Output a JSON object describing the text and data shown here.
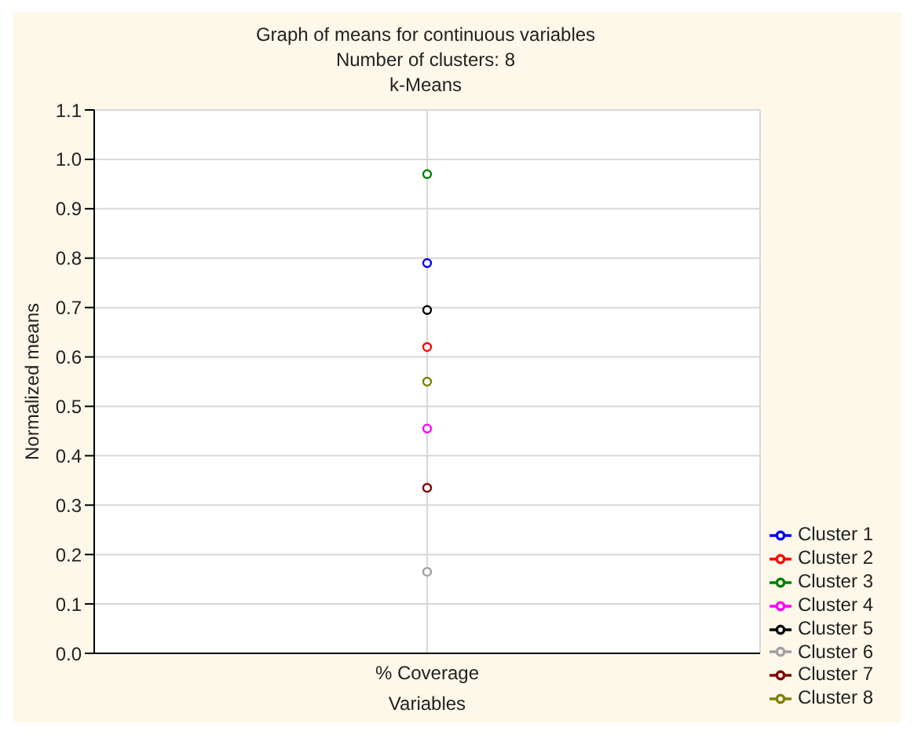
{
  "chart_data": {
    "type": "line",
    "title": "Graph of means for continuous variables",
    "subtitle": "Number of clusters: 8\nk-Means",
    "xlabel": "Variables",
    "ylabel": "Normalized means",
    "categories": [
      "% Coverage"
    ],
    "series": [
      {
        "name": "Cluster 1",
        "color": "#0000ff",
        "values": [
          0.79
        ]
      },
      {
        "name": "Cluster 2",
        "color": "#ff0000",
        "values": [
          0.62
        ]
      },
      {
        "name": "Cluster 3",
        "color": "#008000",
        "values": [
          0.97
        ]
      },
      {
        "name": "Cluster 4",
        "color": "#ff00ff",
        "values": [
          0.455
        ]
      },
      {
        "name": "Cluster 5",
        "color": "#000000",
        "values": [
          0.695
        ]
      },
      {
        "name": "Cluster 6",
        "color": "#a0a0a0",
        "values": [
          0.165
        ]
      },
      {
        "name": "Cluster 7",
        "color": "#800000",
        "values": [
          0.335
        ]
      },
      {
        "name": "Cluster 8",
        "color": "#808000",
        "values": [
          0.55
        ]
      }
    ],
    "ylim": [
      0,
      1.1
    ],
    "yticks": [
      {
        "value": 0,
        "label": "0.0"
      },
      0.1,
      0.2,
      0.3,
      0.4,
      0.5,
      0.6,
      0.7,
      0.8,
      0.9,
      {
        "value": 1,
        "label": "1.0"
      },
      1.1
    ],
    "grid": true,
    "legend": "bottom right",
    "marker": "circle"
  }
}
